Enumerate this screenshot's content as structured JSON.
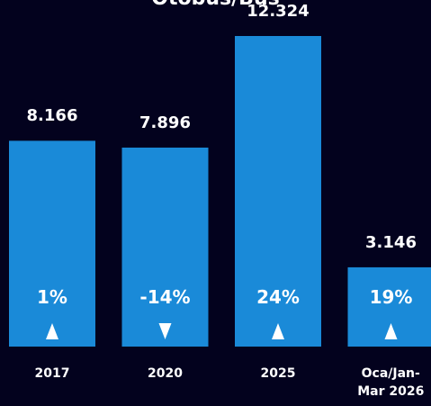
{
  "chart_data": {
    "type": "bar",
    "title": "Otobüs/Bus",
    "categories": [
      "2017",
      "2020",
      "2025",
      "Oca/Jan-Mar 2026"
    ],
    "values": [
      8166,
      7896,
      12324,
      3146
    ],
    "value_labels": [
      "8.166",
      "7.896",
      "12.324",
      "3.146"
    ],
    "changes": [
      1,
      -14,
      24,
      19
    ],
    "change_labels": [
      "1%",
      "-14%",
      "24%",
      "19%"
    ],
    "color": "#1a8ad8"
  }
}
